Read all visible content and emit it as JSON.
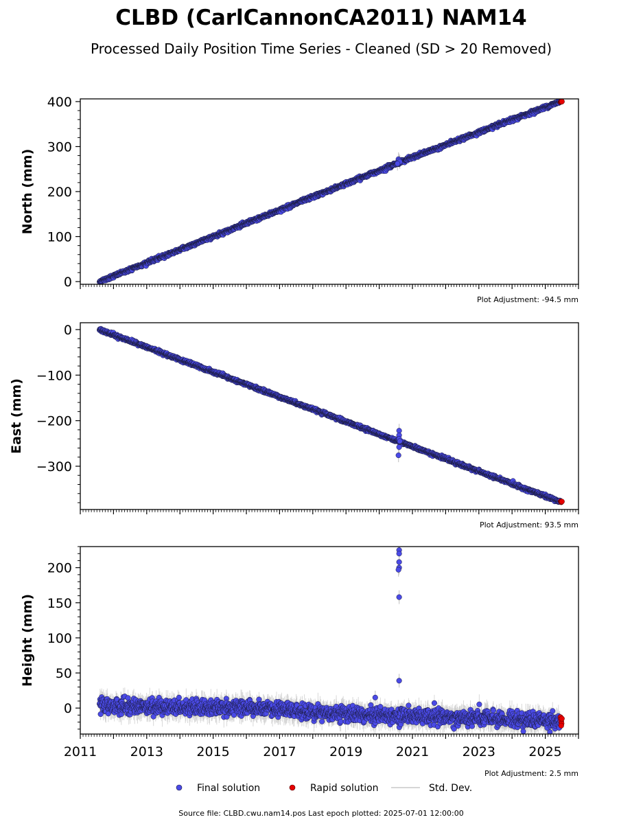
{
  "title": "CLBD (CarlCannonCA2011) NAM14",
  "subtitle": "Processed Daily Position Time Series - Cleaned (SD > 20 Removed)",
  "legend": {
    "final": "Final solution",
    "rapid": "Rapid solution",
    "std": "Std. Dev."
  },
  "footer": "Source file: CLBD.cwu.nam14.pos  Last epoch plotted: 2025-07-01 12:00:00",
  "colors": {
    "final": "#4a4ae6",
    "final_edge": "#1a1a3a",
    "rapid": "#e60000",
    "std": "#c8c8c8"
  },
  "chart_data": [
    {
      "type": "scatter",
      "ylabel": "North (mm)",
      "adjustment": "Plot Adjustment: -94.5 mm",
      "xlim": [
        2011,
        2026
      ],
      "ylim": [
        -6,
        406
      ],
      "yticks": [
        0,
        100,
        200,
        300,
        400
      ],
      "ytick_labels": [
        "0",
        "100",
        "200",
        "300",
        "400"
      ],
      "yminor": 20,
      "x_labels_shown": false,
      "series": [
        {
          "kind": "final",
          "trend": [
            [
              2011.58,
              0
            ],
            [
              2020.45,
              260
            ],
            [
              2020.72,
              268
            ],
            [
              2025.45,
              400
            ]
          ],
          "noise": 1.8,
          "start": 2011.58,
          "end": 2025.45,
          "outliers": [
            [
              2020.58,
              272
            ],
            [
              2020.6,
              269
            ],
            [
              2020.62,
              266
            ],
            [
              2020.55,
              262
            ]
          ]
        },
        {
          "kind": "rapid",
          "points": [
            [
              2025.46,
              399
            ],
            [
              2025.47,
              400
            ],
            [
              2025.48,
              400.5
            ],
            [
              2025.49,
              401
            ],
            [
              2025.5,
              400
            ]
          ]
        }
      ]
    },
    {
      "type": "scatter",
      "ylabel": "East (mm)",
      "adjustment": "Plot Adjustment: 93.5 mm",
      "xlim": [
        2011,
        2026
      ],
      "ylim": [
        -395,
        15
      ],
      "yticks": [
        0,
        -100,
        -200,
        -300
      ],
      "ytick_labels": [
        "0",
        "−100",
        "−200",
        "−300"
      ],
      "yminor": 20,
      "x_labels_shown": false,
      "series": [
        {
          "kind": "final",
          "trend": [
            [
              2011.58,
              0
            ],
            [
              2025.45,
              -378
            ]
          ],
          "noise": 1.6,
          "start": 2011.58,
          "end": 2025.45,
          "outliers": [
            [
              2020.6,
              -222
            ],
            [
              2020.6,
              -232
            ],
            [
              2020.6,
              -240
            ],
            [
              2020.6,
              -258
            ],
            [
              2020.58,
              -276
            ],
            [
              2020.62,
              -245
            ]
          ]
        },
        {
          "kind": "rapid",
          "points": [
            [
              2025.46,
              -377
            ],
            [
              2025.47,
              -378
            ],
            [
              2025.48,
              -379
            ],
            [
              2025.49,
              -378
            ],
            [
              2025.5,
              -377.5
            ]
          ]
        }
      ]
    },
    {
      "type": "scatter",
      "ylabel": "Height (mm)",
      "adjustment": "Plot Adjustment: 2.5 mm",
      "xlim": [
        2011,
        2026
      ],
      "ylim": [
        -37,
        230
      ],
      "yticks": [
        0,
        50,
        100,
        150,
        200
      ],
      "ytick_labels": [
        "0",
        "50",
        "100",
        "150",
        "200"
      ],
      "yminor": 10,
      "x_labels_shown": true,
      "xticks": [
        2011,
        2013,
        2015,
        2017,
        2019,
        2021,
        2023,
        2025
      ],
      "xtick_labels": [
        "2011",
        "2013",
        "2015",
        "2017",
        "2019",
        "2021",
        "2023",
        "2025"
      ],
      "series": [
        {
          "kind": "final",
          "trend": [
            [
              2011.58,
              3
            ],
            [
              2016,
              0
            ],
            [
              2017.8,
              -5
            ],
            [
              2020,
              -10
            ],
            [
              2025.45,
              -18
            ]
          ],
          "noise": 5.5,
          "start": 2011.58,
          "end": 2025.45,
          "outliers": [
            [
              2020.6,
              225
            ],
            [
              2020.6,
              220
            ],
            [
              2020.6,
              208
            ],
            [
              2020.6,
              200
            ],
            [
              2020.58,
              197
            ],
            [
              2020.6,
              158
            ],
            [
              2020.6,
              39
            ],
            [
              2019.88,
              15
            ]
          ]
        },
        {
          "kind": "rapid",
          "points": [
            [
              2025.46,
              -13
            ],
            [
              2025.47,
              -16
            ],
            [
              2025.48,
              -19
            ],
            [
              2025.49,
              -22
            ],
            [
              2025.5,
              -15
            ],
            [
              2025.48,
              -25
            ]
          ]
        }
      ]
    }
  ]
}
